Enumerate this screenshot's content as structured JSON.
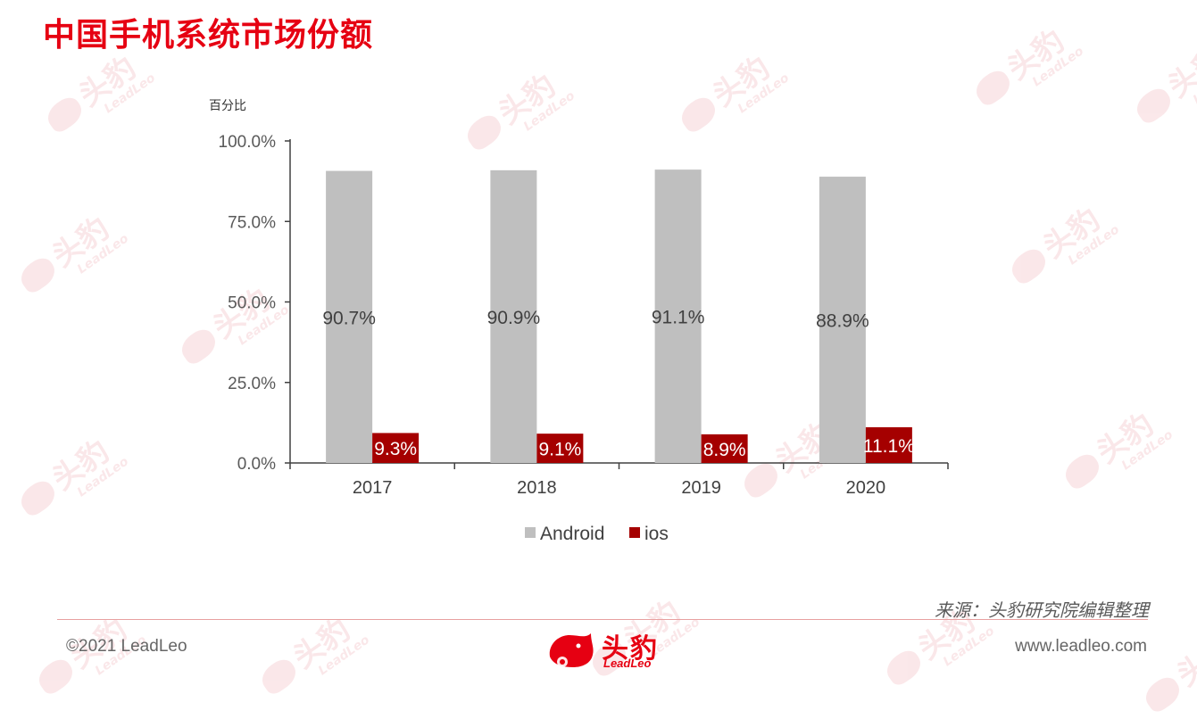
{
  "page": {
    "title": "中国手机系统市场份额",
    "source_note": "来源：头豹研究院编辑整理",
    "copyright": "©2021 LeadLeo",
    "website": "www.leadleo.com",
    "logo_cn": "头豹",
    "logo_en": "LeadLeo",
    "watermark_cn": "头豹",
    "watermark_en": "LeadLeo"
  },
  "colors": {
    "title": "#e60012",
    "android": "#bfbfbf",
    "ios": "#a50000",
    "axis": "#404040"
  },
  "chart_data": {
    "type": "bar",
    "ylabel": "百分比",
    "categories": [
      "2017",
      "2018",
      "2019",
      "2020"
    ],
    "series": [
      {
        "name": "Android",
        "values": [
          90.7,
          90.9,
          91.1,
          88.9
        ],
        "labels": [
          "90.7%",
          "90.9%",
          "91.1%",
          "88.9%"
        ]
      },
      {
        "name": "ios",
        "values": [
          9.3,
          9.1,
          8.9,
          11.1
        ],
        "labels": [
          "9.3%",
          "9.1%",
          "8.9%",
          "11.1%"
        ]
      }
    ],
    "ylim": [
      0,
      100
    ],
    "yticks": [
      0,
      25,
      50,
      75,
      100
    ],
    "ytick_labels": [
      "0.0%",
      "25.0%",
      "50.0%",
      "75.0%",
      "100.0%"
    ],
    "grid": false,
    "legend_position": "bottom"
  }
}
